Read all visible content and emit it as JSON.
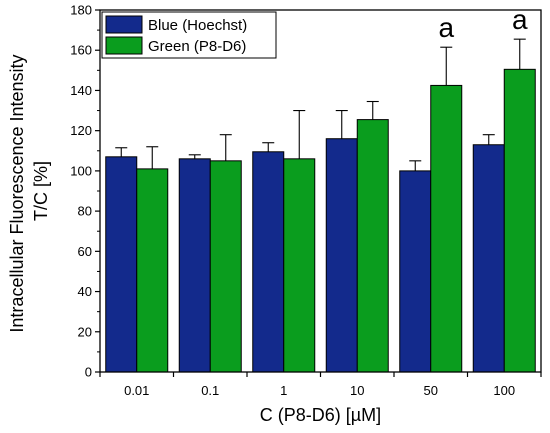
{
  "chart_data": {
    "type": "bar",
    "title": "",
    "xlabel": "C (P8-D6) [µM]",
    "ylabel_line1": "Intracellular Fluorescence Intensity",
    "ylabel_line2": "T/C [%]",
    "categories": [
      "0.01",
      "0.1",
      "1",
      "10",
      "50",
      "100"
    ],
    "ylim": [
      0,
      180
    ],
    "yticks": [
      0,
      20,
      40,
      60,
      80,
      100,
      120,
      140,
      160,
      180
    ],
    "series": [
      {
        "name": "Blue (Hoechst)",
        "color": "#132a8c",
        "values": [
          107,
          106,
          109.5,
          116,
          100,
          113
        ],
        "errors": [
          4.5,
          2,
          4.5,
          14,
          5,
          5
        ]
      },
      {
        "name": "Green (P8-D6)",
        "color": "#0a9d1e",
        "values": [
          101,
          105,
          106,
          125.5,
          142.5,
          150.5
        ],
        "errors": [
          11,
          13,
          24,
          9,
          19,
          15
        ]
      }
    ],
    "annotations": [
      {
        "category": "50",
        "series": 1,
        "text": "a"
      },
      {
        "category": "100",
        "series": 1,
        "text": "a"
      }
    ],
    "legend_position": "top-left",
    "grid": false
  }
}
